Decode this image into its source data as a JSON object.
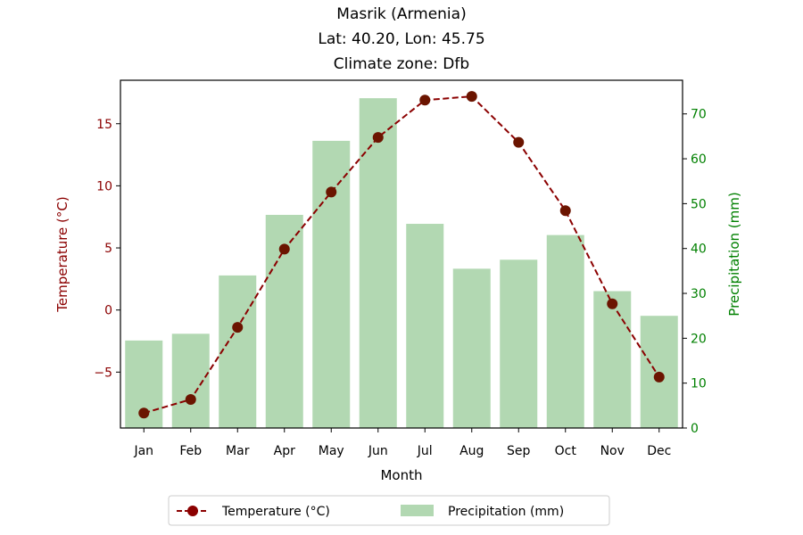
{
  "chart_data": {
    "type": "bar+line",
    "title_lines": [
      "Masrik (Armenia)",
      "Lat: 40.20, Lon: 45.75",
      "Climate zone: Dfb"
    ],
    "xlabel": "Month",
    "categories": [
      "Jan",
      "Feb",
      "Mar",
      "Apr",
      "May",
      "Jun",
      "Jul",
      "Aug",
      "Sep",
      "Oct",
      "Nov",
      "Dec"
    ],
    "y_left": {
      "label": "Temperature (°C)",
      "range": [
        -9.5,
        18.5
      ],
      "ticks": [
        -5,
        0,
        5,
        10,
        15
      ],
      "tick_labels": [
        "−5",
        "0",
        "5",
        "10",
        "15"
      ],
      "color": "#8b0000"
    },
    "y_right": {
      "label": "Precipitation (mm)",
      "range": [
        0,
        77.5
      ],
      "ticks": [
        0,
        10,
        20,
        30,
        40,
        50,
        60,
        70
      ],
      "tick_labels": [
        "0",
        "10",
        "20",
        "30",
        "40",
        "50",
        "60",
        "70"
      ],
      "color": "#008000"
    },
    "series": [
      {
        "name": "Temperature (°C)",
        "kind": "line",
        "axis": "left",
        "color": "#8b0000",
        "values": [
          -8.3,
          -7.2,
          -1.4,
          4.9,
          9.5,
          13.9,
          16.9,
          17.2,
          13.5,
          8.0,
          0.5,
          -5.4
        ]
      },
      {
        "name": "Precipitation (mm)",
        "kind": "bar",
        "axis": "right",
        "color": "#b2d8b2",
        "values": [
          19.5,
          21.0,
          34.0,
          47.5,
          64.0,
          73.5,
          45.5,
          35.5,
          37.5,
          43.0,
          30.5,
          25.0
        ]
      }
    ],
    "legend_placement": "bottom-center",
    "grid": false
  }
}
